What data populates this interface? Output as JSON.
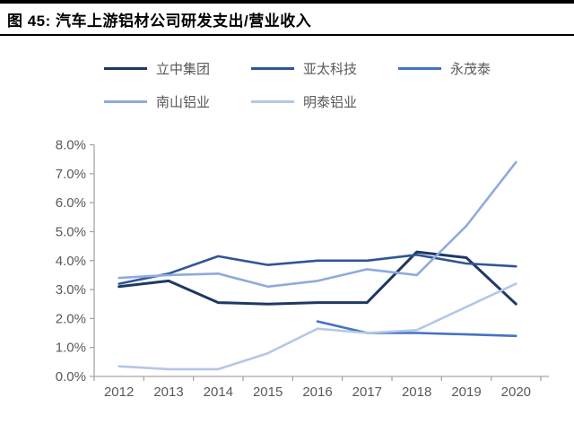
{
  "header": {
    "title": "图 45:  汽车上游铝材公司研发支出/营业收入"
  },
  "chart_data": {
    "type": "line",
    "title": "汽车上游铝材公司研发支出/营业收入",
    "categories": [
      "2012",
      "2013",
      "2014",
      "2015",
      "2016",
      "2017",
      "2018",
      "2019",
      "2020"
    ],
    "series": [
      {
        "name": "立中集团",
        "key": "lizhong-group",
        "color": "#1F3864",
        "values": [
          3.1,
          3.3,
          2.55,
          2.5,
          2.55,
          2.55,
          4.3,
          4.1,
          2.5
        ]
      },
      {
        "name": "亚太科技",
        "key": "yatai-tech",
        "color": "#2F5597",
        "values": [
          3.2,
          3.55,
          4.15,
          3.85,
          4.0,
          4.0,
          4.2,
          3.9,
          3.8
        ]
      },
      {
        "name": "永茂泰",
        "key": "yongmaotai",
        "color": "#4472C4",
        "values": [
          null,
          null,
          null,
          null,
          1.9,
          1.5,
          1.5,
          1.45,
          1.4
        ]
      },
      {
        "name": "南山铝业",
        "key": "nanshan-aluminum",
        "color": "#8FAADC",
        "values": [
          3.4,
          3.5,
          3.55,
          3.1,
          3.3,
          3.7,
          3.5,
          5.2,
          7.4
        ]
      },
      {
        "name": "明泰铝业",
        "key": "mingtai-aluminum",
        "color": "#B4C7E7",
        "values": [
          0.35,
          0.25,
          0.25,
          0.8,
          1.65,
          1.5,
          1.6,
          2.4,
          3.2
        ]
      }
    ],
    "ylim": [
      0,
      8
    ],
    "ytick_step": 1,
    "ytick_labels": [
      "0.0%",
      "1.0%",
      "2.0%",
      "3.0%",
      "4.0%",
      "5.0%",
      "6.0%",
      "7.0%",
      "8.0%"
    ],
    "xlabel": "",
    "ylabel": "",
    "grid": false,
    "legend_position": "top",
    "axis_color": "#A6A6A6",
    "label_color": "#595959"
  }
}
